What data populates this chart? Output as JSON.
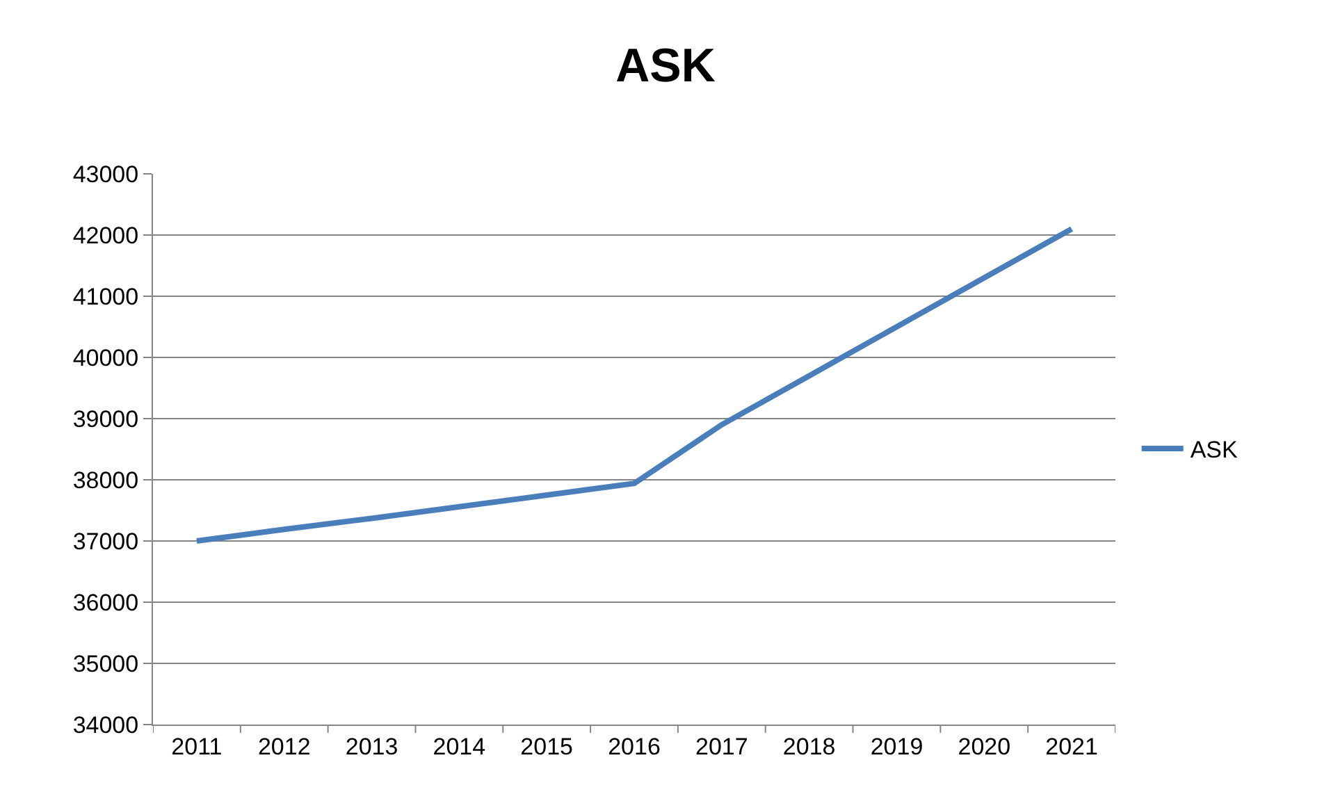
{
  "chart_data": {
    "type": "line",
    "title": "ASK",
    "categories": [
      "2011",
      "2012",
      "2013",
      "2014",
      "2015",
      "2016",
      "2017",
      "2018",
      "2019",
      "2020",
      "2021"
    ],
    "series": [
      {
        "name": "ASK",
        "color": "#4a7ebb",
        "values": [
          37000,
          37190,
          37370,
          37560,
          37750,
          37940,
          38900,
          39700,
          40500,
          41300,
          42100
        ]
      }
    ],
    "ylim": [
      34000,
      43000
    ],
    "yticks": [
      34000,
      35000,
      36000,
      37000,
      38000,
      39000,
      40000,
      41000,
      42000,
      43000
    ],
    "grid": "y",
    "legend": "right",
    "marker": "none",
    "line_style": "solid"
  }
}
